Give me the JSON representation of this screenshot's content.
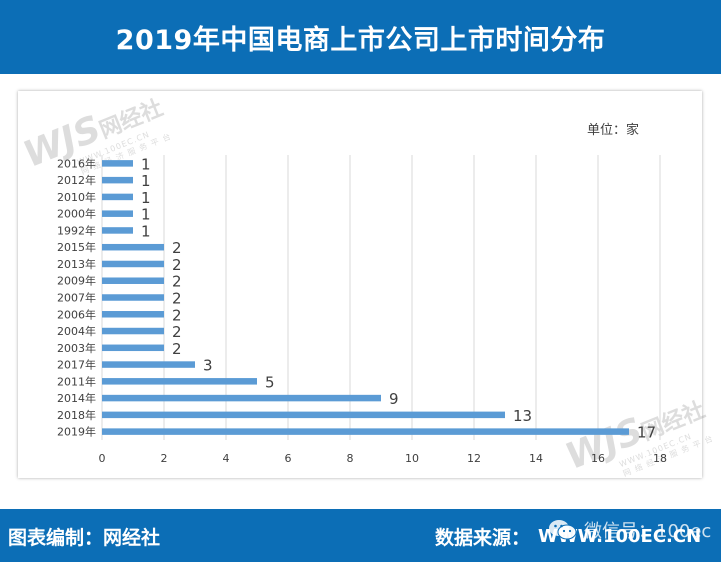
{
  "header": {
    "title": "2019年中国电商上市公司上市时间分布"
  },
  "unit_label": "单位：家",
  "watermark": {
    "brand": "WJS",
    "name": "网经社",
    "url": "WWW.100EC.CN",
    "slogan": "网 络 经 济 服 务 平 台"
  },
  "footer": {
    "left_text": "图表编制：网经社",
    "right_label": "数据来源：",
    "site": "WWW.100EC.CN",
    "wechat_text": "微信号：100ec"
  },
  "colors": {
    "bar": "#5b9bd5",
    "header": "#0c6eb6",
    "grid": "#d9d9d9"
  },
  "chart_data": {
    "type": "bar",
    "orientation": "horizontal",
    "title": "2019年中国电商上市公司上市时间分布",
    "unit": "家",
    "categories": [
      "2016年",
      "2012年",
      "2010年",
      "2000年",
      "1992年",
      "2015年",
      "2013年",
      "2009年",
      "2007年",
      "2006年",
      "2004年",
      "2003年",
      "2017年",
      "2011年",
      "2014年",
      "2018年",
      "2019年"
    ],
    "values": [
      1,
      1,
      1,
      1,
      1,
      2,
      2,
      2,
      2,
      2,
      2,
      2,
      3,
      5,
      9,
      13,
      17
    ],
    "xlim": [
      0,
      18
    ],
    "xticks": [
      0,
      2,
      4,
      6,
      8,
      10,
      12,
      14,
      16,
      18
    ],
    "grid": true,
    "data_labels": true
  }
}
